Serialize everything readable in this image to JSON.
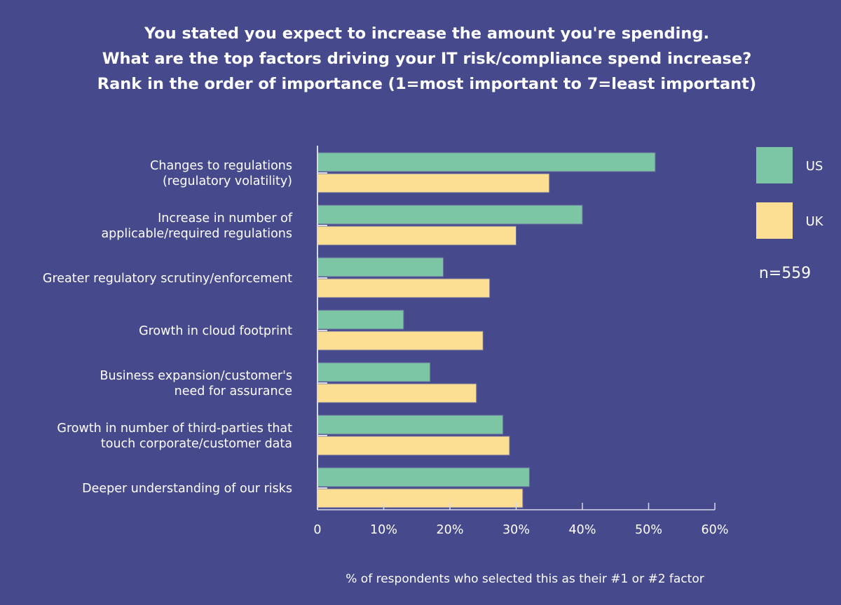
{
  "title_lines": [
    "You stated you expect to increase the amount you're spending.",
    "What are the top factors driving your IT risk/compliance spend increase?",
    "Rank in the order of importance (1=most important to 7=least important)"
  ],
  "chart_data": {
    "type": "bar",
    "orientation": "horizontal",
    "title": "You stated you expect to increase the amount you're spending. What are the top factors driving your IT risk/compliance spend increase? Rank in the order of importance (1=most important to 7=least important)",
    "categories": [
      [
        "Changes to regulations",
        "(regulatory volatility)"
      ],
      [
        "Increase in number of",
        "applicable/required regulations"
      ],
      [
        "Greater regulatory scrutiny/enforcement"
      ],
      [
        "Growth in cloud footprint"
      ],
      [
        "Business expansion/customer's",
        "need for assurance"
      ],
      [
        "Growth in number of third-parties that",
        "touch corporate/customer data"
      ],
      [
        "Deeper understanding of our risks"
      ]
    ],
    "series": [
      {
        "name": "US",
        "color": "#7cc6a5",
        "values": [
          51,
          40,
          19,
          13,
          17,
          28,
          32
        ]
      },
      {
        "name": "UK",
        "color": "#fddf94",
        "values": [
          35,
          30,
          26,
          25,
          24,
          29,
          31
        ]
      }
    ],
    "xlabel": "% of respondents who selected this as their #1 or #2 factor",
    "xlim": [
      0,
      60
    ],
    "xticks": [
      "0",
      "10%",
      "20%",
      "30%",
      "40%",
      "50%",
      "60%"
    ],
    "grid": false,
    "legend_position": "right",
    "annotation": "n=559"
  },
  "colors": {
    "background": "#464a8c",
    "axis": "#d8d8e8"
  }
}
